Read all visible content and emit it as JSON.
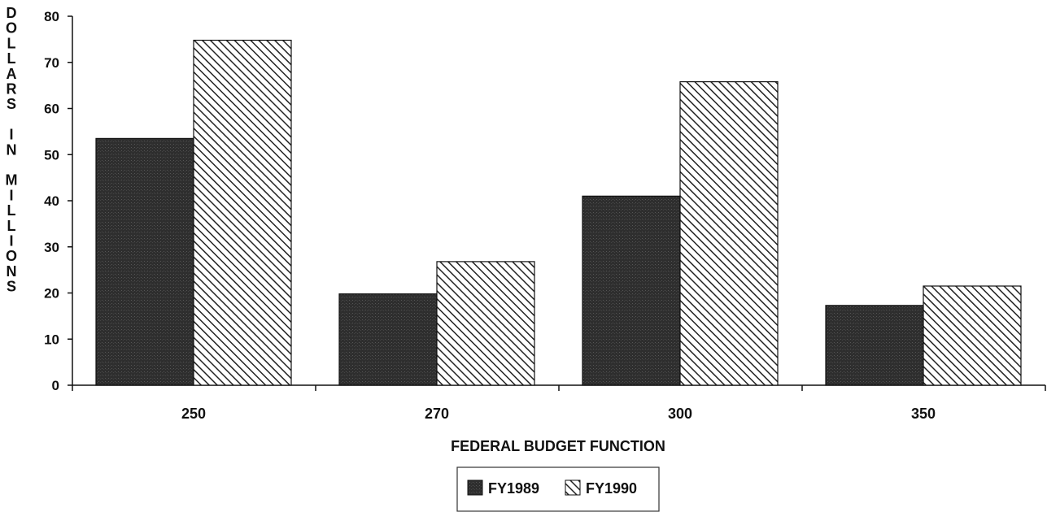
{
  "chart_data": {
    "type": "bar",
    "categories": [
      "250",
      "270",
      "300",
      "350"
    ],
    "series": [
      {
        "name": "FY1989",
        "values": [
          53.5,
          19.8,
          41,
          17.3
        ]
      },
      {
        "name": "FY1990",
        "values": [
          74.8,
          26.8,
          65.8,
          21.5
        ]
      }
    ],
    "xlabel": "FEDERAL BUDGET FUNCTION",
    "ylabel": "DOLLARS IN MILLIONS",
    "ylim": [
      0,
      80
    ],
    "yticks": [
      "0",
      "10",
      "20",
      "30",
      "40",
      "50",
      "60",
      "70",
      "80"
    ],
    "grid": false,
    "legend_position": "bottom-center",
    "colors": {
      "FY1989": "#2b2b2b",
      "FY1990": "hatch"
    }
  }
}
